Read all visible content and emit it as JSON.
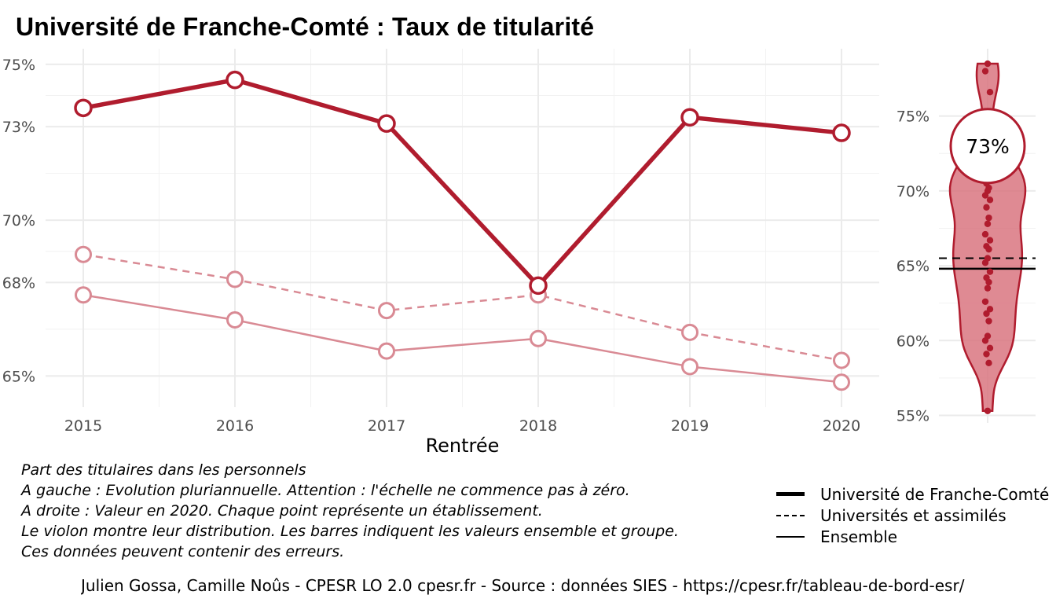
{
  "title": "Université de Franche-Comté  :  Taux de titularité",
  "colors": {
    "accent": "#b01c2e",
    "accent_light": "#d98a94",
    "violin_fill": "#d97580",
    "grid": "#ebebeb"
  },
  "chart_data": [
    {
      "type": "line",
      "xlabel": "Rentrée",
      "ylabel": "",
      "x": [
        2015,
        2016,
        2017,
        2018,
        2019,
        2020
      ],
      "ylim": [
        64,
        75.5
      ],
      "y_ticks": [
        65,
        68,
        70,
        73,
        75
      ],
      "y_tick_labels": [
        "65%",
        "68%",
        "70%",
        "73%",
        "75%"
      ],
      "x_tick_labels": [
        "2015",
        "2016",
        "2017",
        "2018",
        "2019",
        "2020"
      ],
      "grid": true,
      "series": [
        {
          "name": "Université de Franche-Comté",
          "style": "solid-thick",
          "values": [
            73.6,
            74.5,
            73.1,
            67.9,
            73.3,
            72.8
          ]
        },
        {
          "name": "Universités et assimilés",
          "style": "dashed",
          "values": [
            68.9,
            68.1,
            67.1,
            67.6,
            66.4,
            65.5
          ]
        },
        {
          "name": "Ensemble",
          "style": "solid-thin",
          "values": [
            67.6,
            66.8,
            65.8,
            66.2,
            65.3,
            64.8
          ]
        }
      ]
    },
    {
      "type": "violin",
      "ylim": [
        54.5,
        79.5
      ],
      "y_ticks": [
        55,
        60,
        65,
        70,
        75
      ],
      "y_tick_labels": [
        "55%",
        "60%",
        "65%",
        "70%",
        "75%"
      ],
      "highlight_value": 73,
      "highlight_label": "73%",
      "ensemble_value": 64.8,
      "universites_value": 65.5,
      "points": [
        78.5,
        78.0,
        76.6,
        72.9,
        72.3,
        71.8,
        71.3,
        70.9,
        70.5,
        70.2,
        70.0,
        69.7,
        69.4,
        68.9,
        68.2,
        67.8,
        67.1,
        66.7,
        66.3,
        66.1,
        65.5,
        65.2,
        64.6,
        64.2,
        63.9,
        63.5,
        62.6,
        62.1,
        61.8,
        61.3,
        60.3,
        60.0,
        59.5,
        59.1,
        58.5,
        55.3
      ]
    }
  ],
  "notes": [
    "Part des titulaires dans les personnels",
    "A gauche : Evolution pluriannuelle. Attention : l'échelle ne commence pas à zéro.",
    "A droite : Valeur en 2020. Chaque point représente un établissement.",
    "Le violon montre leur distribution. Les barres indiquent les valeurs ensemble et groupe.",
    "Ces données peuvent contenir des erreurs."
  ],
  "legend": [
    {
      "label": "Université de Franche-Comté",
      "style": "solid-thick"
    },
    {
      "label": "Universités et assimilés",
      "style": "dashed"
    },
    {
      "label": "Ensemble",
      "style": "solid-thin"
    }
  ],
  "caption": "Julien Gossa, Camille Noûs - CPESR LO 2.0 cpesr.fr - Source : données SIES - https://cpesr.fr/tableau-de-bord-esr/"
}
